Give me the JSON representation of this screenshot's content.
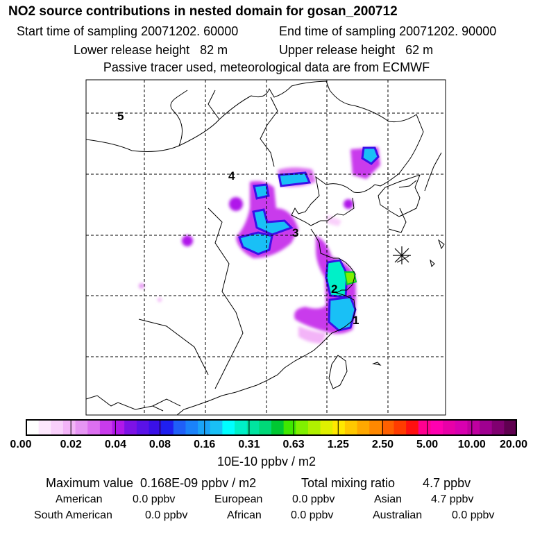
{
  "header": {
    "title": "NO2 source contributions in nested domain for gosan_200712",
    "start_time": "Start time of sampling 20071202. 60000",
    "end_time": "End time of sampling 20071202. 90000",
    "lower_height": "Lower release height   82 m",
    "upper_height": "Upper release height   62 m",
    "tracer_note": "Passive tracer used, meteorological data are from ECMWF"
  },
  "chart_data": {
    "type": "heatmap",
    "title": "NO2 source contributions in nested domain for gosan_200712",
    "colorbar": {
      "ticks": [
        "0.00",
        "0.02",
        "0.04",
        "0.08",
        "0.16",
        "0.31",
        "0.63",
        "1.25",
        "2.50",
        "5.00",
        "10.00",
        "20.00"
      ],
      "unit": "10E-10 ppbv / m2",
      "colors": [
        "#ffffff",
        "#fde8fd",
        "#f9d0fb",
        "#f3b4f8",
        "#e695f3",
        "#dc6ff0",
        "#c93bec",
        "#b018ea",
        "#7d12e6",
        "#5a12e8",
        "#3a10e8",
        "#1f1ff0",
        "#1f5ff8",
        "#1a82fa",
        "#1aa3f8",
        "#19c0f6",
        "#00ffff",
        "#00f0c8",
        "#00e4a0",
        "#00d878",
        "#00c832",
        "#40e800",
        "#80f000",
        "#b0f000",
        "#e0f000",
        "#ffe800",
        "#ffc800",
        "#ffa800",
        "#ff8800",
        "#ff6000",
        "#ff3c00",
        "#ff1010",
        "#ff0090",
        "#ff00b0",
        "#e800a8",
        "#d800b0",
        "#c000a0",
        "#a00090",
        "#800070",
        "#600050"
      ]
    },
    "region_labels": [
      "1",
      "2",
      "3",
      "4",
      "5"
    ],
    "receptor": "gosan",
    "values_note": "concentration field in 10E-10 ppbv / m2"
  },
  "footer": {
    "max_value": "Maximum value  0.168E-09 ppbv / m2",
    "total_mixing": "Total mixing ratio        4.7 ppbv",
    "american_label": "American",
    "american_val": "0.0 ppbv",
    "european_label": "European",
    "european_val": "0.0 ppbv",
    "asian_label": "Asian",
    "asian_val": "4.7 ppbv",
    "south_american_label": "South American",
    "south_american_val": "0.0 ppbv",
    "african_label": "African",
    "african_val": "0.0 ppbv",
    "australian_label": "Australian",
    "australian_val": "0.0 ppbv"
  },
  "colors": {
    "coast": "#000000",
    "grid": "#000000"
  }
}
